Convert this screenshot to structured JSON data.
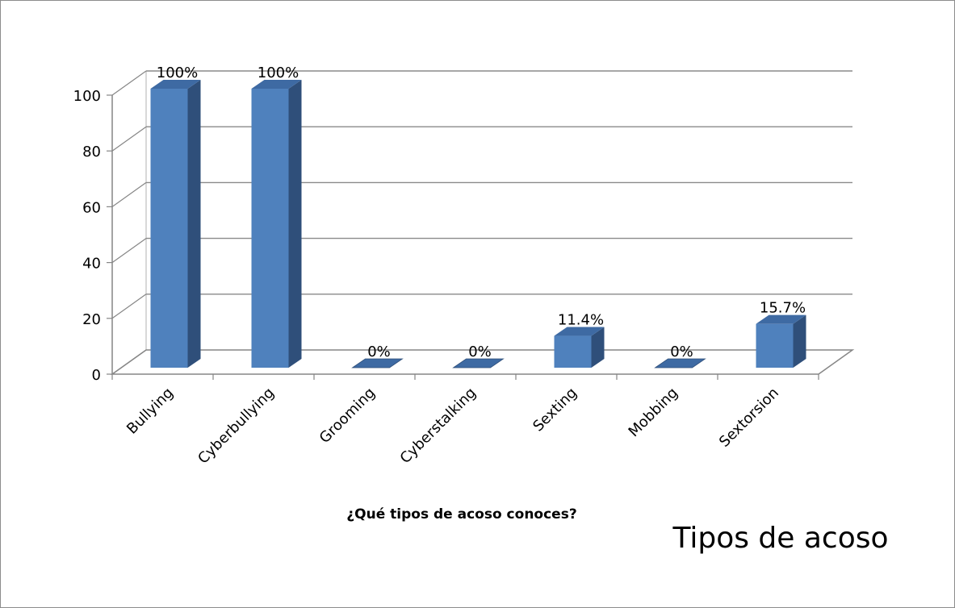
{
  "chart_data": {
    "type": "bar",
    "title": "Tipos de acoso",
    "xlabel": "¿Qué tipos de acoso conoces?",
    "ylabel": "",
    "categories": [
      "Bullying",
      "Cyberbullying",
      "Grooming",
      "Cyberstalking",
      "Sexting",
      "Mobbing",
      "Sextorsion"
    ],
    "values": [
      100,
      100,
      0,
      0,
      11.4,
      0,
      15.7
    ],
    "data_labels": [
      "100%",
      "100%",
      "0%",
      "0%",
      "11.4%",
      "0%",
      "15.7%"
    ],
    "ylim": [
      0,
      100
    ],
    "yticks": [
      "0",
      "20",
      "40",
      "60",
      "80",
      "100"
    ],
    "grid": true,
    "legend": "none",
    "bar_color": "#4f81bd",
    "bar_side_color": "#2f4f7a",
    "bar_top_color": "#3e6aa3"
  }
}
